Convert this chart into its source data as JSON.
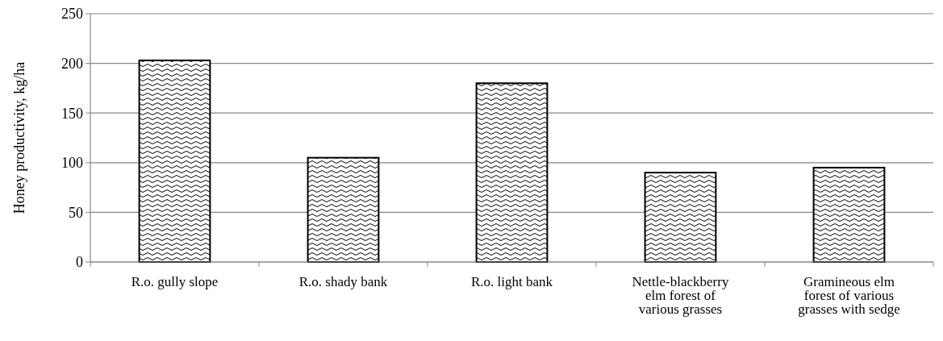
{
  "chart_data": {
    "type": "bar",
    "ylabel": "Honey productivity, kg/ha",
    "categories": [
      "R.o. gully slope",
      "R.o. shady bank",
      "R.o. light bank",
      "Nettle-blackberry elm forest of various grasses",
      "Gramineous elm forest of various grasses with sedge"
    ],
    "values": [
      203,
      105,
      180,
      90,
      95
    ],
    "color": "#000000",
    "ylim": [
      0,
      250
    ],
    "yticks": [
      0,
      50,
      100,
      150,
      200,
      250
    ],
    "grid": "y"
  }
}
